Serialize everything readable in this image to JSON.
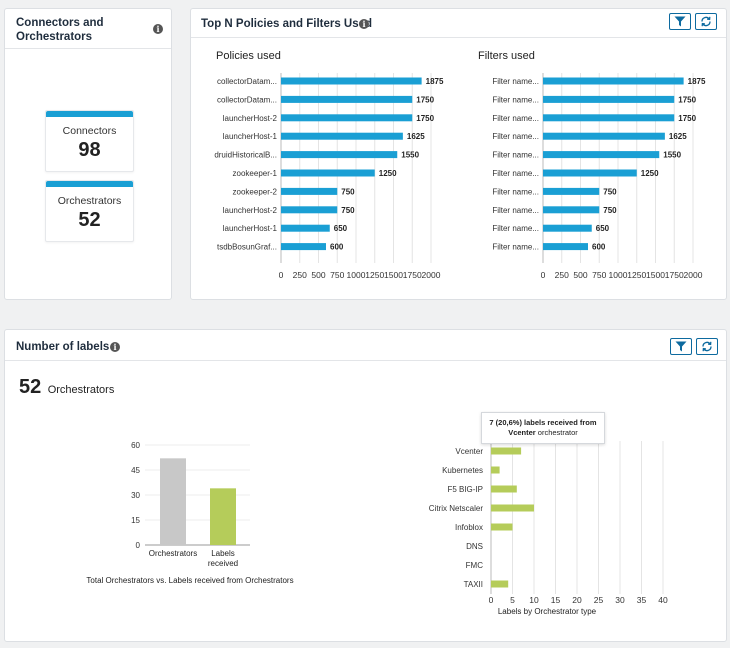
{
  "connectors_panel": {
    "title_line1": "Connectors and",
    "title_line2": "Orchestrators",
    "tiles": [
      {
        "label": "Connectors",
        "value": "98"
      },
      {
        "label": "Orchestrators",
        "value": "52"
      }
    ]
  },
  "policies_panel": {
    "title": "Top N Policies and Filters Used",
    "filter_icon": "filter-icon",
    "refresh_icon": "refresh-icon"
  },
  "labels_panel": {
    "title": "Number of labels",
    "summary_value": "52",
    "summary_label": "Orchestrators",
    "tooltip_line1": "7 (20,6%) labels received from",
    "tooltip_bold": "Vcenter",
    "tooltip_rest": " orchestrator"
  },
  "chart_data": [
    {
      "type": "bar",
      "orientation": "horizontal",
      "title": "Policies used",
      "categories": [
        "collectorDatam...",
        "collectorDatam...",
        "launcherHost-2",
        "launcherHost-1",
        "druidHistoricalB...",
        "zookeeper-1",
        "zookeeper-2",
        "launcherHost-2",
        "launcherHost-1",
        "tsdbBosunGraf..."
      ],
      "values": [
        1875,
        1750,
        1750,
        1625,
        1550,
        1250,
        750,
        750,
        650,
        600
      ],
      "xticks": [
        "0",
        "250",
        "500",
        "750",
        "1000",
        "1250",
        "1500",
        "1750",
        "2000"
      ],
      "xlim": [
        0,
        2000
      ],
      "color": "#1a9fd4"
    },
    {
      "type": "bar",
      "orientation": "horizontal",
      "title": "Filters used",
      "categories": [
        "Filter name...",
        "Filter name...",
        "Filter name...",
        "Filter name...",
        "Filter name...",
        "Filter name...",
        "Filter name...",
        "Filter name...",
        "Filter name...",
        "Filter name..."
      ],
      "values": [
        1875,
        1750,
        1750,
        1625,
        1550,
        1250,
        750,
        750,
        650,
        600
      ],
      "xticks": [
        "0",
        "250",
        "500",
        "750",
        "1000",
        "1250",
        "1500",
        "1750",
        "2000"
      ],
      "xlim": [
        0,
        2000
      ],
      "color": "#1a9fd4"
    },
    {
      "type": "bar",
      "orientation": "vertical",
      "title": "Total Orchestrators vs. Labels received from Orchestrators",
      "categories": [
        [
          "Orchestrators"
        ],
        [
          "Labels",
          "received"
        ]
      ],
      "values": [
        52,
        34
      ],
      "colors": [
        "#c8c8c8",
        "#b5cc5a"
      ],
      "yticks": [
        "0",
        "15",
        "30",
        "45",
        "60"
      ],
      "ylim": [
        0,
        60
      ]
    },
    {
      "type": "bar",
      "orientation": "horizontal",
      "title": "Labels by Orchestrator type",
      "categories": [
        "Vcenter",
        "Kubernetes",
        "F5 BIG-IP",
        "Citrix Netscaler",
        "Infoblox",
        "DNS",
        "FMC",
        "TAXII"
      ],
      "values": [
        7,
        2,
        6,
        10,
        5,
        0,
        0,
        4
      ],
      "xtick_values": [
        0,
        5,
        10,
        15,
        20,
        25,
        30,
        35,
        40
      ],
      "xtick_labels": [
        "0",
        "5",
        "10",
        "15",
        "20",
        "25",
        "30",
        "35",
        "40"
      ],
      "xlim": [
        0,
        40
      ],
      "color": "#b5cc5a"
    }
  ]
}
